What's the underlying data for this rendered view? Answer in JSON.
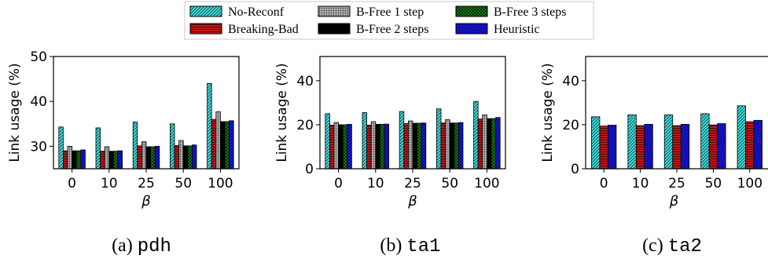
{
  "legend": {
    "entries": [
      {
        "label": "No-Reconf",
        "color": "#40e0e0",
        "pattern": "diag"
      },
      {
        "label": "Breaking-Bad",
        "color": "#c01818",
        "pattern": "hlines"
      },
      {
        "label": "B-Free 1 step",
        "color": "#909090",
        "pattern": "dots"
      },
      {
        "label": "B-Free 2 steps",
        "color": "#000000",
        "pattern": "solid"
      },
      {
        "label": "B-Free 3 steps",
        "color": "#1a8a1a",
        "pattern": "cross"
      },
      {
        "label": "Heuristic",
        "color": "#1818e0",
        "pattern": "diag"
      }
    ]
  },
  "chart_data": [
    {
      "type": "bar",
      "caption_prefix": "(a)",
      "caption_name": "pdh",
      "xlabel": "β",
      "ylabel": "Link usage (%)",
      "ylim": [
        25,
        50
      ],
      "yticks": [
        30,
        40,
        50
      ],
      "categories": [
        "0",
        "10",
        "25",
        "50",
        "100"
      ],
      "series": [
        {
          "name": "No-Reconf",
          "values": [
            34.3,
            34.1,
            35.4,
            35.0,
            44.0
          ]
        },
        {
          "name": "Breaking-Bad",
          "values": [
            29.0,
            28.9,
            30.1,
            30.2,
            36.0
          ]
        },
        {
          "name": "B-Free 1 step",
          "values": [
            30.0,
            29.9,
            31.0,
            31.3,
            37.7
          ]
        },
        {
          "name": "B-Free 2 steps",
          "values": [
            29.0,
            28.9,
            29.9,
            30.1,
            35.5
          ]
        },
        {
          "name": "B-Free 3 steps",
          "values": [
            29.0,
            28.9,
            29.9,
            30.1,
            35.5
          ]
        },
        {
          "name": "Heuristic",
          "values": [
            29.2,
            29.0,
            30.0,
            30.3,
            35.7
          ]
        }
      ]
    },
    {
      "type": "bar",
      "caption_prefix": "(b)",
      "caption_name": "ta1",
      "xlabel": "β",
      "ylabel": "Link usage (%)",
      "ylim": [
        0,
        51
      ],
      "yticks": [
        0,
        20,
        40
      ],
      "categories": [
        "0",
        "10",
        "25",
        "50",
        "100"
      ],
      "series": [
        {
          "name": "No-Reconf",
          "values": [
            25.0,
            25.5,
            26.0,
            27.2,
            30.6
          ]
        },
        {
          "name": "Breaking-Bad",
          "values": [
            19.8,
            19.8,
            20.5,
            20.8,
            22.6
          ]
        },
        {
          "name": "B-Free 1 step",
          "values": [
            21.0,
            21.4,
            21.7,
            22.3,
            24.5
          ]
        },
        {
          "name": "B-Free 2 steps",
          "values": [
            20.0,
            20.2,
            20.7,
            20.8,
            22.8
          ]
        },
        {
          "name": "B-Free 3 steps",
          "values": [
            20.0,
            20.2,
            20.7,
            20.8,
            22.8
          ]
        },
        {
          "name": "Heuristic",
          "values": [
            20.2,
            20.3,
            20.8,
            21.0,
            23.3
          ]
        }
      ]
    },
    {
      "type": "bar",
      "caption_prefix": "(c)",
      "caption_name": "ta2",
      "xlabel": "β",
      "ylabel": "Link usage (%)",
      "ylim": [
        0,
        51
      ],
      "yticks": [
        0,
        20,
        40
      ],
      "categories": [
        "0",
        "10",
        "25",
        "50",
        "100"
      ],
      "series": [
        {
          "name": "No-Reconf",
          "values": [
            23.6,
            24.5,
            24.5,
            25.0,
            28.6
          ]
        },
        {
          "name": "Breaking-Bad",
          "values": [
            19.4,
            19.6,
            19.6,
            19.9,
            21.4
          ]
        },
        {
          "name": "Heuristic",
          "values": [
            19.8,
            20.2,
            20.2,
            20.5,
            22.0
          ]
        }
      ]
    }
  ]
}
